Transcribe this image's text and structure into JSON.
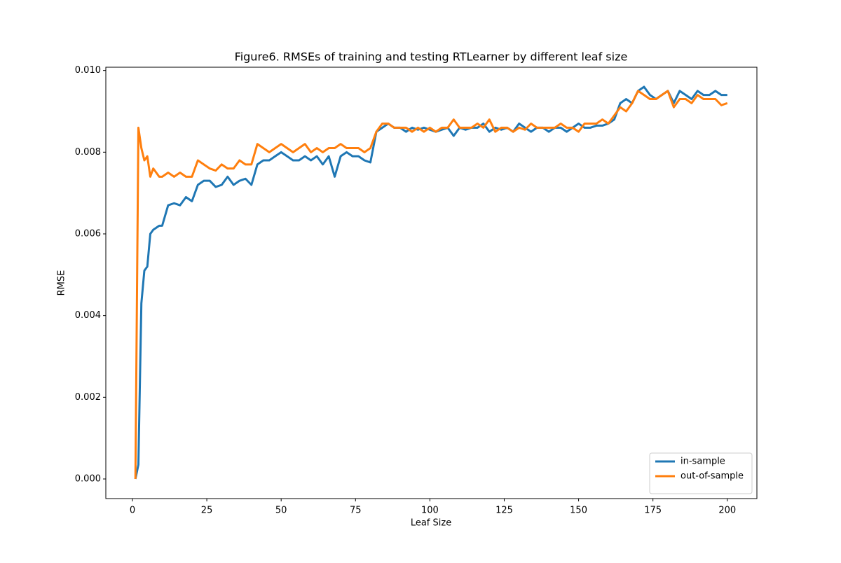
{
  "chart_data": {
    "type": "line",
    "title": "Figure6. RMSEs of training and testing RTLearner by different leaf size",
    "x_label": "Leaf Size",
    "y_label": "RMSE",
    "x": [
      1,
      2,
      3,
      4,
      5,
      6,
      7,
      8,
      9,
      10,
      12,
      14,
      16,
      18,
      20,
      22,
      24,
      26,
      28,
      30,
      32,
      34,
      36,
      38,
      40,
      42,
      44,
      46,
      48,
      50,
      52,
      54,
      56,
      58,
      60,
      62,
      64,
      66,
      68,
      70,
      72,
      74,
      76,
      78,
      80,
      82,
      84,
      86,
      88,
      90,
      92,
      94,
      96,
      98,
      100,
      102,
      104,
      106,
      108,
      110,
      112,
      114,
      116,
      118,
      120,
      122,
      124,
      126,
      128,
      130,
      132,
      134,
      136,
      138,
      140,
      142,
      144,
      146,
      148,
      150,
      152,
      154,
      156,
      158,
      160,
      162,
      164,
      166,
      168,
      170,
      172,
      174,
      176,
      178,
      180,
      182,
      184,
      186,
      188,
      190,
      192,
      194,
      196,
      198,
      200
    ],
    "series": [
      {
        "name": "in-sample",
        "color": "#1f77b4",
        "values": [
          0,
          0.00035,
          0.0043,
          0.0051,
          0.0052,
          0.006,
          0.0061,
          0.00615,
          0.0062,
          0.0062,
          0.0067,
          0.00675,
          0.0067,
          0.0069,
          0.0068,
          0.0072,
          0.0073,
          0.0073,
          0.00715,
          0.0072,
          0.0074,
          0.0072,
          0.0073,
          0.00735,
          0.0072,
          0.0077,
          0.0078,
          0.0078,
          0.0079,
          0.008,
          0.0079,
          0.0078,
          0.0078,
          0.0079,
          0.0078,
          0.0079,
          0.0077,
          0.0079,
          0.0074,
          0.0079,
          0.008,
          0.0079,
          0.0079,
          0.0078,
          0.00775,
          0.0085,
          0.0086,
          0.0087,
          0.0086,
          0.0086,
          0.0085,
          0.0086,
          0.00855,
          0.0086,
          0.00855,
          0.0085,
          0.00855,
          0.0086,
          0.0084,
          0.0086,
          0.00855,
          0.0086,
          0.0086,
          0.0087,
          0.0085,
          0.0086,
          0.00855,
          0.0086,
          0.0085,
          0.0087,
          0.0086,
          0.0085,
          0.0086,
          0.0086,
          0.0085,
          0.0086,
          0.0086,
          0.0085,
          0.0086,
          0.0087,
          0.0086,
          0.0086,
          0.00865,
          0.00865,
          0.0087,
          0.0088,
          0.0092,
          0.0093,
          0.0092,
          0.0095,
          0.0096,
          0.0094,
          0.0093,
          0.0094,
          0.0095,
          0.0092,
          0.0095,
          0.0094,
          0.0093,
          0.0095,
          0.0094,
          0.0094,
          0.0095,
          0.0094,
          0.0094
        ]
      },
      {
        "name": "out-of-sample",
        "color": "#ff7f0e",
        "values": [
          0,
          0.0086,
          0.0081,
          0.0078,
          0.0079,
          0.0074,
          0.0076,
          0.0075,
          0.0074,
          0.0074,
          0.0075,
          0.0074,
          0.0075,
          0.0074,
          0.0074,
          0.0078,
          0.0077,
          0.0076,
          0.00755,
          0.0077,
          0.0076,
          0.0076,
          0.0078,
          0.0077,
          0.0077,
          0.0082,
          0.0081,
          0.008,
          0.0081,
          0.0082,
          0.0081,
          0.008,
          0.0081,
          0.0082,
          0.008,
          0.0081,
          0.008,
          0.0081,
          0.0081,
          0.0082,
          0.0081,
          0.0081,
          0.0081,
          0.008,
          0.0081,
          0.0085,
          0.0087,
          0.0087,
          0.0086,
          0.0086,
          0.0086,
          0.0085,
          0.0086,
          0.0085,
          0.0086,
          0.0085,
          0.0086,
          0.0086,
          0.0088,
          0.0086,
          0.0086,
          0.0086,
          0.0087,
          0.0086,
          0.0088,
          0.0085,
          0.0086,
          0.0086,
          0.0085,
          0.0086,
          0.00855,
          0.0087,
          0.0086,
          0.0086,
          0.0086,
          0.0086,
          0.0087,
          0.0086,
          0.0086,
          0.0085,
          0.0087,
          0.0087,
          0.0087,
          0.0088,
          0.0087,
          0.0089,
          0.0091,
          0.009,
          0.0092,
          0.0095,
          0.0094,
          0.0093,
          0.0093,
          0.0094,
          0.0095,
          0.0091,
          0.0093,
          0.0093,
          0.0092,
          0.0094,
          0.0093,
          0.0093,
          0.0093,
          0.00915,
          0.0092
        ]
      }
    ],
    "xlim": [
      -8.95,
      209.95
    ],
    "xticks": [
      0,
      25,
      50,
      75,
      100,
      125,
      150,
      175,
      200
    ],
    "ylim": [
      -0.00048,
      0.01008
    ],
    "yticks": [
      {
        "value": 0,
        "label": "0.000"
      },
      0.002,
      0.004,
      0.006,
      0.008,
      {
        "value": 0.01,
        "label": "0.010"
      }
    ],
    "legend": "lower right"
  }
}
